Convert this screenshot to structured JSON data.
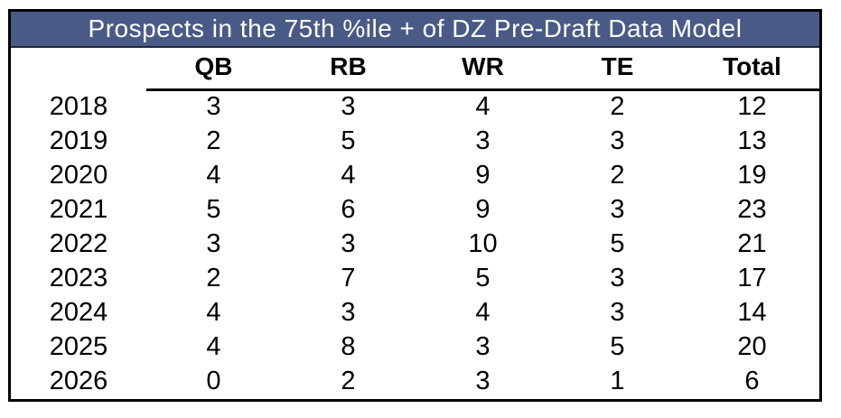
{
  "chart_data": {
    "type": "table",
    "title": "Prospects in the 75th %ile + of DZ Pre-Draft Data Model",
    "columns": [
      "QB",
      "RB",
      "WR",
      "TE",
      "Total"
    ],
    "rows": [
      {
        "year": "2018",
        "values": [
          3,
          3,
          4,
          2,
          12
        ]
      },
      {
        "year": "2019",
        "values": [
          2,
          5,
          3,
          3,
          13
        ]
      },
      {
        "year": "2020",
        "values": [
          4,
          4,
          9,
          2,
          19
        ]
      },
      {
        "year": "2021",
        "values": [
          5,
          6,
          9,
          3,
          23
        ]
      },
      {
        "year": "2022",
        "values": [
          3,
          3,
          10,
          5,
          21
        ]
      },
      {
        "year": "2023",
        "values": [
          2,
          7,
          5,
          3,
          17
        ]
      },
      {
        "year": "2024",
        "values": [
          4,
          3,
          4,
          3,
          14
        ]
      },
      {
        "year": "2025",
        "values": [
          4,
          8,
          3,
          5,
          20
        ]
      },
      {
        "year": "2026",
        "values": [
          0,
          2,
          3,
          1,
          6
        ]
      }
    ]
  },
  "colors": {
    "title_bg": "#4a5a87",
    "title_text": "#ffffff",
    "border": "#000000",
    "text": "#000000",
    "body_bg": "#ffffff"
  }
}
